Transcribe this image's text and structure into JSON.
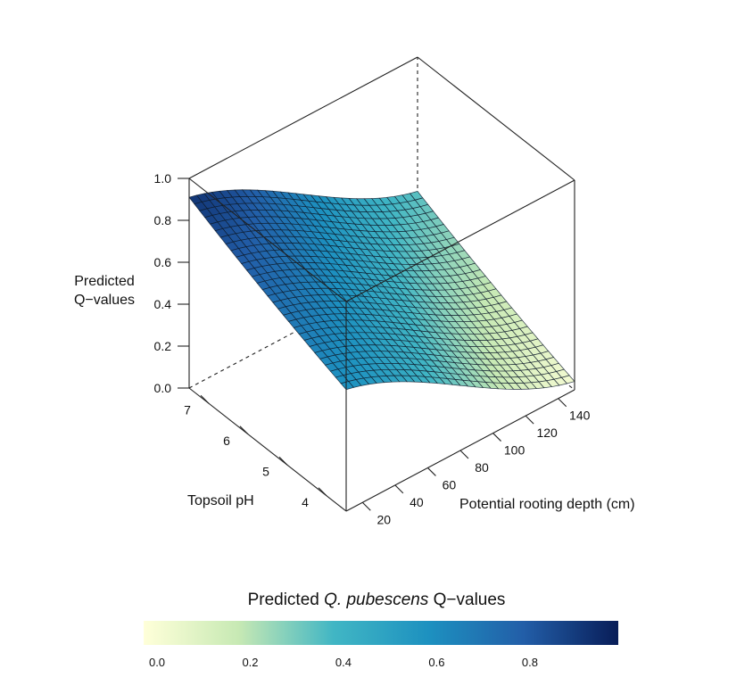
{
  "chart_data": {
    "type": "surface3d",
    "z_axis": {
      "label_line1": "Predicted",
      "label_line2": "Q−values",
      "range": [
        0,
        1
      ],
      "ticks": [
        "0.0",
        "0.2",
        "0.4",
        "0.6",
        "0.8",
        "1.0"
      ],
      "tick_values": [
        0.0,
        0.2,
        0.4,
        0.6,
        0.8,
        1.0
      ]
    },
    "ph_axis": {
      "label": "Topsoil pH",
      "range": [
        3.5,
        7.5
      ],
      "ticks": [
        "4",
        "5",
        "6",
        "7"
      ],
      "tick_values": [
        4,
        5,
        6,
        7
      ]
    },
    "depth_axis": {
      "label": "Potential rooting depth (cm)",
      "range": [
        10,
        150
      ],
      "ticks": [
        "20",
        "40",
        "60",
        "80",
        "100",
        "120",
        "140"
      ],
      "tick_values": [
        20,
        40,
        60,
        80,
        100,
        120,
        140
      ]
    },
    "corner_values": [
      {
        "ph": 7.5,
        "depth": 10,
        "q": 0.91
      },
      {
        "ph": 3.5,
        "depth": 10,
        "q": 0.58
      },
      {
        "ph": 3.5,
        "depth": 150,
        "q": 0.04
      },
      {
        "ph": 7.5,
        "depth": 150,
        "q": 0.36
      }
    ],
    "grid_resolution": 30,
    "colormap": [
      "#ffffd9",
      "#c7e9b4",
      "#41b6c4",
      "#1d91c0",
      "#225ea8",
      "#081d58"
    ],
    "legend": {
      "title_prefix": "Predicted ",
      "title_italic": "Q. pubescens",
      "title_suffix": " Q−values",
      "ticks": [
        "0.0",
        "0.2",
        "0.4",
        "0.6",
        "0.8"
      ],
      "tick_values": [
        0.0,
        0.2,
        0.4,
        0.6,
        0.8
      ],
      "range": [
        0,
        0.98
      ]
    }
  }
}
